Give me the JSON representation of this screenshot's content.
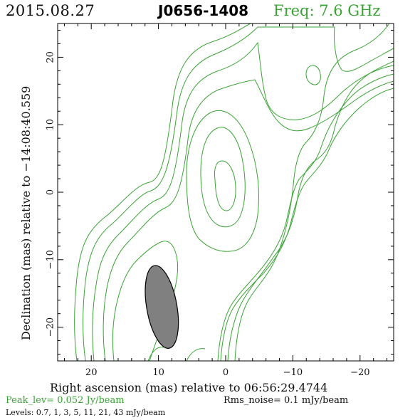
{
  "header": {
    "date": "2015.08.27",
    "source": "J0656-1408",
    "frequency": "Freq: 7.6 GHz"
  },
  "footer": {
    "peak": "Peak_lev=  0.052 Jy/beam",
    "rms": "Rms_noise=  0.1 mJy/beam",
    "levels": "Levels: 0.7,   1,   3,   5,  11,  21,  43 mJy/beam"
  },
  "colors": {
    "contour": "#3aa334",
    "beam_fill": "#808080",
    "axis": "#000000"
  },
  "chart_data": {
    "type": "contour",
    "xlabel": "Right ascension (mas) relative to 06:56:29.4744",
    "ylabel": "Declination (mas) relative to −14:08:40.559",
    "xlim": [
      25,
      -25
    ],
    "ylim": [
      -25,
      25
    ],
    "x_ticks": [
      20,
      10,
      0,
      -10,
      -20
    ],
    "x_tick_labels": [
      "20",
      "10",
      "0",
      "−10",
      "−20"
    ],
    "y_ticks": [
      20,
      10,
      0,
      -10,
      -20
    ],
    "y_tick_labels": [
      "20",
      "10",
      "0",
      "−10",
      "−20"
    ],
    "contour_levels_mJy_per_beam": [
      0.7,
      1,
      3,
      5,
      11,
      21,
      43
    ],
    "peak_Jy_per_beam": 0.052,
    "rms_noise_mJy_per_beam": 0.1,
    "peak_position_mas": [
      0.0,
      1.5
    ],
    "beam": {
      "center_mas": [
        9.5,
        -17
      ],
      "major_mas": 12.5,
      "minor_mas": 4.5,
      "pa_deg": -10
    }
  }
}
